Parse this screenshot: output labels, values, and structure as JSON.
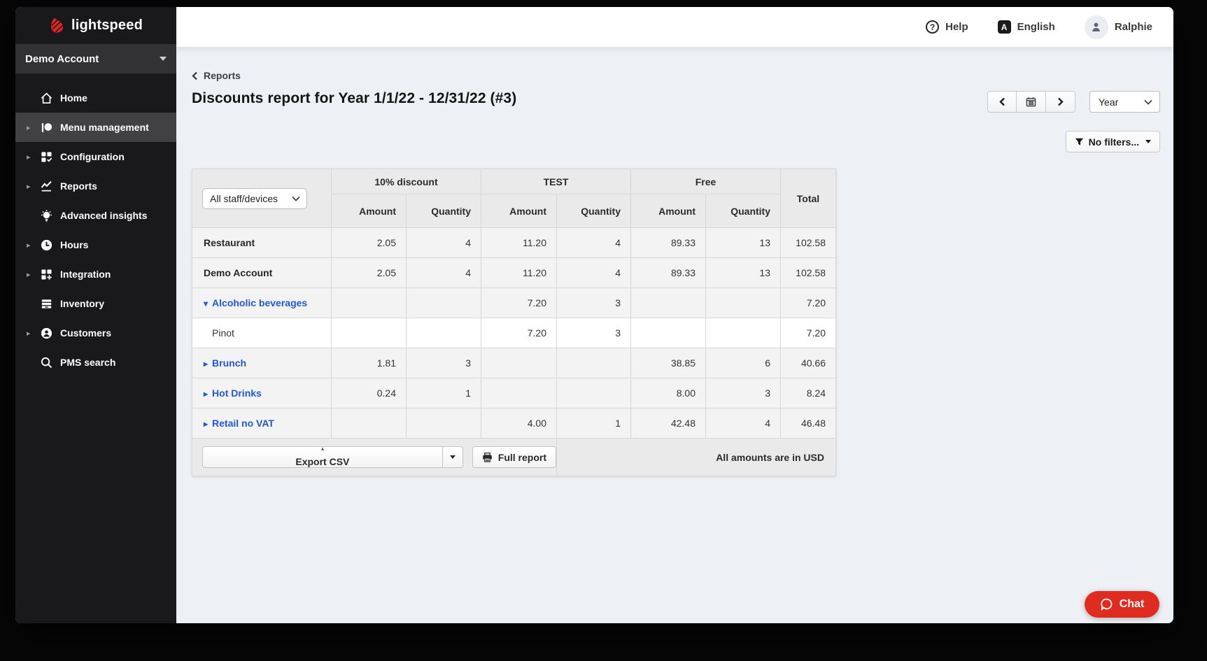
{
  "sidebar": {
    "logo_text": "lightspeed",
    "account_selector": "Demo Account",
    "items": [
      {
        "label": "Home",
        "icon": "home-icon",
        "expandable": false,
        "active": false
      },
      {
        "label": "Menu management",
        "icon": "menu-management-icon",
        "expandable": true,
        "active": true
      },
      {
        "label": "Configuration",
        "icon": "configuration-icon",
        "expandable": true,
        "active": false
      },
      {
        "label": "Reports",
        "icon": "reports-icon",
        "expandable": true,
        "active": false
      },
      {
        "label": "Advanced insights",
        "icon": "insights-icon",
        "expandable": false,
        "active": false
      },
      {
        "label": "Hours",
        "icon": "hours-icon",
        "expandable": true,
        "active": false
      },
      {
        "label": "Integration",
        "icon": "integration-icon",
        "expandable": true,
        "active": false
      },
      {
        "label": "Inventory",
        "icon": "inventory-icon",
        "expandable": false,
        "active": false
      },
      {
        "label": "Customers",
        "icon": "customers-icon",
        "expandable": true,
        "active": false
      },
      {
        "label": "PMS search",
        "icon": "search-icon",
        "expandable": false,
        "active": false
      }
    ]
  },
  "topbar": {
    "help_label": "Help",
    "language_label": "English",
    "language_badge": "A",
    "user_name": "Ralphie",
    "help_glyph": "?"
  },
  "report": {
    "breadcrumb": "Reports",
    "title": "Discounts report for Year 1/1/22 - 12/31/22 (#3)",
    "period_selected": "Year",
    "filters_label": "No filters..."
  },
  "table": {
    "staff_filter_selected": "All staff/devices",
    "groups": [
      "10% discount",
      "TEST",
      "Free"
    ],
    "subheaders": [
      "Amount",
      "Quantity"
    ],
    "total_label": "Total",
    "rows": [
      {
        "name": "Restaurant",
        "style": "bold",
        "expanded": false,
        "values": [
          "2.05",
          "4",
          "11.20",
          "4",
          "89.33",
          "13",
          "102.58"
        ]
      },
      {
        "name": "Demo Account",
        "style": "bold",
        "expanded": false,
        "values": [
          "2.05",
          "4",
          "11.20",
          "4",
          "89.33",
          "13",
          "102.58"
        ]
      },
      {
        "name": "Alcoholic beverages",
        "style": "link",
        "expanded": true,
        "values": [
          "",
          "",
          "7.20",
          "3",
          "",
          "",
          "7.20"
        ]
      },
      {
        "name": "Pinot",
        "style": "child",
        "expanded": false,
        "values": [
          "",
          "",
          "7.20",
          "3",
          "",
          "",
          "7.20"
        ]
      },
      {
        "name": "Brunch",
        "style": "link",
        "expanded": false,
        "values": [
          "1.81",
          "3",
          "",
          "",
          "38.85",
          "6",
          "40.66"
        ]
      },
      {
        "name": "Hot Drinks",
        "style": "link",
        "expanded": false,
        "values": [
          "0.24",
          "1",
          "",
          "",
          "8.00",
          "3",
          "8.24"
        ]
      },
      {
        "name": "Retail no VAT",
        "style": "link",
        "expanded": false,
        "values": [
          "",
          "",
          "4.00",
          "1",
          "42.48",
          "4",
          "46.48"
        ]
      }
    ],
    "footer": {
      "export_csv_label": "Export CSV",
      "full_report_label": "Full report",
      "currency_note": "All amounts are in USD"
    }
  },
  "chat": {
    "label": "Chat"
  },
  "colors": {
    "brand_red": "#e02b20",
    "link_blue": "#2356d8",
    "sidebar_bg": "#19191b"
  }
}
